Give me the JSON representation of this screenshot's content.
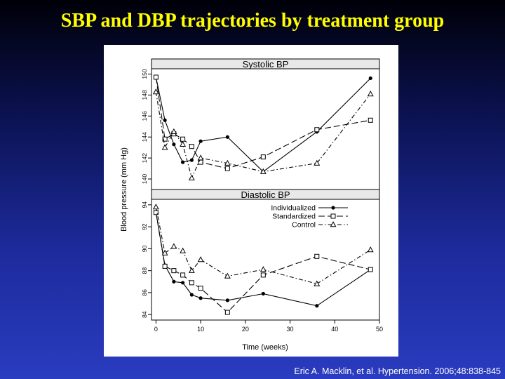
{
  "slide": {
    "title": "SBP and DBP trajectories by treatment group",
    "citation": "Eric A. Macklin, et al. Hypertension. 2006;48:838-845"
  },
  "chart_data": {
    "type": "line",
    "ylabel": "Blood pressure (mm Hg)",
    "xlabel": "Time (weeks)",
    "x_ticks": [
      0,
      10,
      20,
      30,
      40,
      50
    ],
    "xlim": [
      -1,
      50
    ],
    "legend_position": "top-right of Diastolic panel",
    "panels": [
      {
        "title": "Systolic BP",
        "ylim": [
          139,
          150.5
        ],
        "y_ticks": [
          140,
          142,
          144,
          146,
          148,
          150
        ],
        "series": [
          {
            "name": "Individualized",
            "marker": "filled-circle",
            "dash": "solid",
            "x": [
              0,
              2,
              4,
              6,
              8,
              10,
              16,
              24,
              36,
              48
            ],
            "y": [
              149.7,
              145.6,
              143.3,
              141.6,
              141.8,
              143.6,
              144.0,
              140.7,
              144.5,
              149.6
            ]
          },
          {
            "name": "Standardized",
            "marker": "open-square",
            "dash": "long-dash",
            "x": [
              0,
              2,
              4,
              6,
              8,
              10,
              16,
              24,
              36,
              48
            ],
            "y": [
              149.7,
              143.8,
              144.3,
              143.8,
              143.1,
              141.6,
              141.0,
              142.1,
              144.7,
              145.6
            ]
          },
          {
            "name": "Control",
            "marker": "open-triangle",
            "dash": "dash-dot",
            "x": [
              0,
              2,
              4,
              6,
              8,
              10,
              16,
              24,
              36,
              48
            ],
            "y": [
              148.3,
              143.0,
              144.5,
              143.3,
              140.1,
              142.0,
              141.5,
              140.7,
              141.5,
              148.1
            ]
          }
        ]
      },
      {
        "title": "Diastolic BP",
        "ylim": [
          83.5,
          94.5
        ],
        "y_ticks": [
          84,
          86,
          88,
          90,
          92,
          94
        ],
        "series": [
          {
            "name": "Individualized",
            "marker": "filled-circle",
            "dash": "solid",
            "x": [
              0,
              2,
              4,
              6,
              8,
              10,
              16,
              24,
              36,
              48
            ],
            "y": [
              93.3,
              88.5,
              87.0,
              86.9,
              85.8,
              85.5,
              85.3,
              85.9,
              84.8,
              88.1
            ]
          },
          {
            "name": "Standardized",
            "marker": "open-square",
            "dash": "long-dash",
            "x": [
              0,
              2,
              4,
              6,
              8,
              10,
              16,
              24,
              36,
              48
            ],
            "y": [
              93.3,
              88.4,
              88.0,
              87.6,
              86.9,
              86.4,
              84.2,
              87.6,
              89.3,
              88.1
            ]
          },
          {
            "name": "Control",
            "marker": "open-triangle",
            "dash": "dash-dot",
            "x": [
              0,
              2,
              4,
              6,
              8,
              10,
              16,
              24,
              36,
              48
            ],
            "y": [
              93.8,
              89.6,
              90.2,
              89.8,
              88.0,
              89.0,
              87.5,
              88.1,
              86.8,
              89.9
            ]
          }
        ]
      }
    ]
  }
}
